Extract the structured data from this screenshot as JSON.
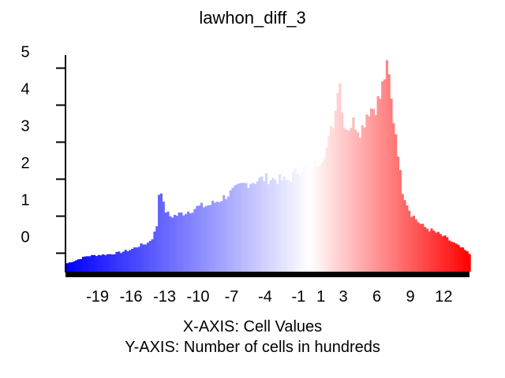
{
  "chart_data": {
    "type": "bar",
    "title": "lawhon_diff_3",
    "xlabel": "X-AXIS: Cell Values",
    "ylabel": "Y-AXIS: Number of cells in hundreds",
    "x_ticks": [
      "-19",
      "-16",
      "-13",
      "-10",
      "-7",
      "-4",
      "-1",
      "1",
      "3",
      "6",
      "9",
      "12"
    ],
    "y_ticks": [
      "0",
      "1",
      "2",
      "3",
      "4",
      "5"
    ],
    "xlim": [
      -21.8,
      14.3
    ],
    "ylim": [
      0,
      5.8
    ],
    "color_low": "#0000ff",
    "color_mid": "#ffffff",
    "color_high": "#ff0000",
    "bin_width": 0.2,
    "profile": [
      [
        -21.8,
        0.22
      ],
      [
        -21,
        0.3
      ],
      [
        -20,
        0.42
      ],
      [
        -19,
        0.45
      ],
      [
        -18,
        0.47
      ],
      [
        -17,
        0.52
      ],
      [
        -16,
        0.6
      ],
      [
        -15.3,
        0.7
      ],
      [
        -14.5,
        0.78
      ],
      [
        -14,
        0.95
      ],
      [
        -13.7,
        1.25
      ],
      [
        -13.4,
        2.55
      ],
      [
        -13.2,
        1.9
      ],
      [
        -13,
        1.7
      ],
      [
        -12.6,
        1.5
      ],
      [
        -12,
        1.52
      ],
      [
        -11,
        1.62
      ],
      [
        -10,
        1.75
      ],
      [
        -9,
        1.8
      ],
      [
        -8,
        1.95
      ],
      [
        -7,
        2.15
      ],
      [
        -6,
        2.35
      ],
      [
        -5,
        2.45
      ],
      [
        -4,
        2.52
      ],
      [
        -3,
        2.5
      ],
      [
        -2,
        2.45
      ],
      [
        -1,
        2.75
      ],
      [
        -0.2,
        2.85
      ],
      [
        0.5,
        2.9
      ],
      [
        1,
        3.05
      ],
      [
        1.6,
        3.4
      ],
      [
        2.0,
        3.9
      ],
      [
        2.4,
        4.5
      ],
      [
        2.6,
        5.7
      ],
      [
        2.9,
        4.3
      ],
      [
        3.3,
        3.9
      ],
      [
        4.0,
        4.05
      ],
      [
        4.6,
        3.8
      ],
      [
        5.2,
        4.4
      ],
      [
        5.8,
        4.45
      ],
      [
        6.3,
        4.7
      ],
      [
        6.7,
        5.3
      ],
      [
        7.0,
        5.5
      ],
      [
        7.4,
        4.3
      ],
      [
        7.8,
        3.6
      ],
      [
        8.2,
        2.3
      ],
      [
        9,
        1.6
      ],
      [
        10,
        1.25
      ],
      [
        11,
        1.1
      ],
      [
        12,
        0.95
      ],
      [
        13,
        0.75
      ],
      [
        13.8,
        0.6
      ],
      [
        14.3,
        0.48
      ]
    ]
  }
}
